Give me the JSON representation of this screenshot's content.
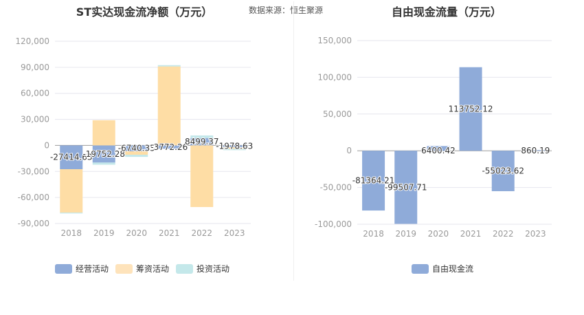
{
  "source_label": "数据来源：恒生聚源",
  "chart_data": [
    {
      "type": "bar",
      "title": "ST实达现金流净额（万元）",
      "categories": [
        "2018",
        "2019",
        "2020",
        "2021",
        "2022",
        "2023"
      ],
      "ylim": [
        -90000,
        120000
      ],
      "yticks": [
        -90000,
        -60000,
        -30000,
        0,
        30000,
        60000,
        90000,
        120000
      ],
      "ytick_labels": [
        "-90,000",
        "-60,000",
        "-30,000",
        "0",
        "30,000",
        "60,000",
        "90,000",
        "120,000"
      ],
      "series": [
        {
          "name": "经营活动",
          "color": "#8fabd9",
          "values": [
            -27414.63,
            -19752.28,
            -6740.35,
            -3772.26,
            8499.37,
            -1978.63
          ],
          "labels": [
            "-27414.63",
            "-19752.28",
            "-6740.35",
            "-3772.26",
            "8499.37",
            "-1978.63"
          ]
        },
        {
          "name": "筹资活动",
          "color": "#fedda5",
          "values": [
            -50000,
            29000,
            -4000,
            91000,
            -71000,
            -2000
          ]
        },
        {
          "name": "投资活动",
          "color": "#c4e8ea",
          "values": [
            -1000,
            -2500,
            -2500,
            1500,
            3000,
            -1500
          ]
        }
      ],
      "legend": "bottom",
      "grid": true
    },
    {
      "type": "bar",
      "title": "自由现金流量（万元）",
      "categories": [
        "2018",
        "2019",
        "2020",
        "2021",
        "2022",
        "2023"
      ],
      "ylim": [
        -100000,
        150000
      ],
      "yticks": [
        -100000,
        -50000,
        0,
        50000,
        100000,
        150000
      ],
      "ytick_labels": [
        "-100,000",
        "-50,000",
        "0",
        "50,000",
        "100,000",
        "150,000"
      ],
      "series": [
        {
          "name": "自由现金流",
          "color": "#8fabd9",
          "values": [
            -81364.21,
            -99507.71,
            6400.42,
            113752.12,
            -55023.62,
            860.19
          ],
          "labels": [
            "-81364.21",
            "-99507.71",
            "6400.42",
            "113752.12",
            "-55023.62",
            "860.19"
          ]
        }
      ],
      "legend": "bottom",
      "grid": true
    }
  ]
}
